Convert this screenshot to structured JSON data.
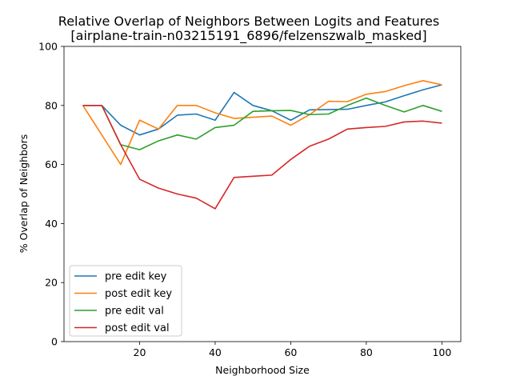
{
  "chart_data": {
    "type": "line",
    "title": "Relative Overlap of Neighbors Between Logits and Features",
    "subtitle": "[airplane-train-n03215191_6896/felzenszwalb_masked]",
    "xlabel": "Neighborhood Size",
    "ylabel": "% Overlap of Neighbors",
    "xlim": [
      0,
      105
    ],
    "ylim": [
      0,
      100
    ],
    "xticks": [
      20,
      40,
      60,
      80,
      100
    ],
    "yticks": [
      0,
      20,
      40,
      60,
      80,
      100
    ],
    "grid": false,
    "legend_position": "lower-left",
    "x": [
      5,
      10,
      15,
      20,
      25,
      30,
      35,
      40,
      45,
      50,
      55,
      60,
      65,
      70,
      75,
      80,
      85,
      90,
      95,
      100
    ],
    "series": [
      {
        "name": "pre edit key",
        "color": "#1f77b4",
        "values": [
          80,
          80,
          73.3,
          70,
          72,
          76.7,
          77.1,
          75,
          84.4,
          80,
          78.2,
          75,
          78.5,
          78.6,
          78.7,
          80,
          81.2,
          83.3,
          85.3,
          87
        ]
      },
      {
        "name": "post edit key",
        "color": "#ff7f0e",
        "values": [
          80,
          70,
          60,
          75,
          72,
          80,
          80,
          77.5,
          75.6,
          76,
          76.4,
          73.3,
          76.9,
          81.4,
          81.3,
          83.8,
          84.7,
          86.7,
          88.4,
          87
        ]
      },
      {
        "name": "pre edit val",
        "color": "#2ca02c",
        "values": [
          80,
          80,
          66.7,
          65,
          68,
          70,
          68.6,
          72.5,
          73.3,
          78,
          78.2,
          78.3,
          76.9,
          77.1,
          80,
          82.5,
          80,
          77.8,
          80,
          78
        ]
      },
      {
        "name": "post edit val",
        "color": "#d62728",
        "values": [
          80,
          80,
          66.7,
          55,
          52,
          50,
          48.6,
          45,
          55.6,
          56,
          56.4,
          61.7,
          66.2,
          68.6,
          72,
          72.5,
          72.9,
          74.4,
          74.7,
          74
        ]
      }
    ]
  }
}
